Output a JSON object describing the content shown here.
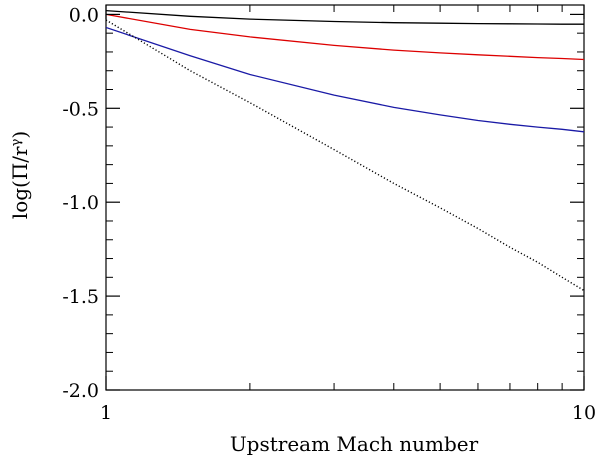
{
  "chart_data": {
    "type": "line",
    "xscale": "log",
    "xlim": [
      1,
      10
    ],
    "ylim": [
      -2.0,
      0.05
    ],
    "xlabel": "Upstream Mach number",
    "ylabel": "log(Π/r^γ)",
    "ylabel_parts": {
      "base": "log(Π/r",
      "sup": "γ",
      "close": ")"
    },
    "x_ticks": [
      {
        "value": 1,
        "label": "1"
      },
      {
        "value": 10,
        "label": "10"
      }
    ],
    "y_ticks": [
      {
        "value": 0.0,
        "label": "0.0"
      },
      {
        "value": -0.5,
        "label": "-0.5"
      },
      {
        "value": -1.0,
        "label": "-1.0"
      },
      {
        "value": -1.5,
        "label": "-1.5"
      },
      {
        "value": -2.0,
        "label": "-2.0"
      }
    ],
    "grid": false,
    "series": [
      {
        "color": "#000000",
        "style": "solid",
        "x": [
          1,
          1.5,
          2,
          3,
          4,
          5,
          6,
          7,
          8,
          9,
          10
        ],
        "y": [
          0.02,
          -0.01,
          -0.025,
          -0.038,
          -0.044,
          -0.047,
          -0.049,
          -0.05,
          -0.051,
          -0.052,
          -0.052
        ]
      },
      {
        "color": "#dd0000",
        "style": "solid",
        "x": [
          1,
          1.5,
          2,
          3,
          4,
          5,
          6,
          7,
          8,
          9,
          10
        ],
        "y": [
          0.0,
          -0.08,
          -0.12,
          -0.165,
          -0.19,
          -0.205,
          -0.215,
          -0.223,
          -0.23,
          -0.235,
          -0.24
        ]
      },
      {
        "color": "#1a1aa6",
        "style": "solid",
        "x": [
          1,
          1.5,
          2,
          3,
          4,
          5,
          6,
          7,
          8,
          9,
          10
        ],
        "y": [
          -0.07,
          -0.22,
          -0.32,
          -0.43,
          -0.495,
          -0.535,
          -0.565,
          -0.585,
          -0.6,
          -0.612,
          -0.625
        ]
      },
      {
        "color": "#000000",
        "style": "dotted",
        "x": [
          1,
          1.5,
          2,
          3,
          4,
          5,
          6,
          7,
          8,
          9,
          10
        ],
        "y": [
          -0.03,
          -0.3,
          -0.47,
          -0.72,
          -0.9,
          -1.03,
          -1.14,
          -1.24,
          -1.32,
          -1.4,
          -1.47
        ]
      }
    ]
  }
}
